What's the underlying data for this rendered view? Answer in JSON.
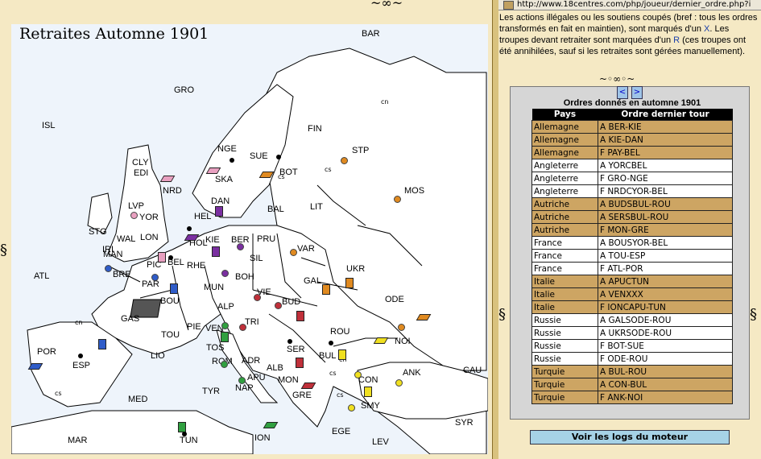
{
  "map": {
    "title": "Retraites Automne 1901",
    "provinces": [
      "BAR",
      "GRO",
      "ISL",
      "NRD",
      "EDI",
      "YOR",
      "LVP",
      "CLY",
      "STG",
      "IRI",
      "LON",
      "MAN",
      "WAL",
      "BRE",
      "PIC",
      "BEL",
      "HOL",
      "PAR",
      "BOU",
      "GAS",
      "ATL",
      "POR",
      "ESP",
      "MAR",
      "LIO",
      "TOU",
      "PIE",
      "VEN",
      "TOS",
      "ROM",
      "NAP",
      "APU",
      "TYR",
      "MED",
      "TUN",
      "ION",
      "ADR",
      "TRI",
      "VIE",
      "BUD",
      "BOH",
      "MUN",
      "ALP",
      "RHE",
      "KIE",
      "BER",
      "DAN",
      "SKA",
      "HEL",
      "NGE",
      "SUE",
      "BOT",
      "FIN",
      "STP",
      "MOS",
      "LIT",
      "BAL",
      "PRU",
      "SIL",
      "VAR",
      "GAL",
      "UKR",
      "ROU",
      "SER",
      "BUL",
      "GRE",
      "MON",
      "CON",
      "ANK",
      "SMY",
      "EGE",
      "LEV",
      "SYR",
      "NOI",
      "ODE",
      "CAU",
      "ALB"
    ],
    "coast_labels": [
      "cn",
      "cs",
      "cs",
      "cs",
      "cn",
      "cn",
      "cs",
      "cs"
    ]
  },
  "browser": {
    "url": "http://www.18centres.com/php/joueur/dernier_ordre.php?i"
  },
  "explanation": {
    "part1": "Les actions illégales ou les soutiens coupés (bref : tous les ordres transformés en fait en maintien), sont marqués d'un ",
    "x": "X",
    "part2": ". Les troupes devant retraiter sont marquées d'un ",
    "r": "R",
    "part3": " (ces troupes ont été annihilées, sauf si les retraites sont gérées manuellement)."
  },
  "nav": {
    "prev": "<",
    "next": ">"
  },
  "orders": {
    "title": "Ordres donnés en automne 1901",
    "headers": [
      "Pays",
      "Ordre dernier tour"
    ],
    "rows": [
      [
        "Allemagne",
        "A BER-KIE"
      ],
      [
        "Allemagne",
        "A KIE-DAN"
      ],
      [
        "Allemagne",
        "F PAY-BEL"
      ],
      [
        "Angleterre",
        "A YORCBEL"
      ],
      [
        "Angleterre",
        "F GRO-NGE"
      ],
      [
        "Angleterre",
        "F NRDCYOR-BEL"
      ],
      [
        "Autriche",
        "A BUDSBUL-ROU"
      ],
      [
        "Autriche",
        "A SERSBUL-ROU"
      ],
      [
        "Autriche",
        "F MON-GRE"
      ],
      [
        "France",
        "A BOUSYOR-BEL"
      ],
      [
        "France",
        "A TOU-ESP"
      ],
      [
        "France",
        "F ATL-POR"
      ],
      [
        "Italie",
        "A APUCTUN"
      ],
      [
        "Italie",
        "A VENXXX"
      ],
      [
        "Italie",
        "F IONCAPU-TUN"
      ],
      [
        "Russie",
        "A GALSODE-ROU"
      ],
      [
        "Russie",
        "A UKRSODE-ROU"
      ],
      [
        "Russie",
        "F BOT-SUE"
      ],
      [
        "Russie",
        "F ODE-ROU"
      ],
      [
        "Turquie",
        "A BUL-ROU"
      ],
      [
        "Turquie",
        "A CON-BUL"
      ],
      [
        "Turquie",
        "F ANK-NOI"
      ]
    ],
    "row_colors": [
      "c0",
      "c0",
      "c0",
      "c1",
      "c1",
      "c1",
      "c0",
      "c0",
      "c0",
      "c1",
      "c1",
      "c1",
      "c0",
      "c0",
      "c0",
      "c1",
      "c1",
      "c1",
      "c1",
      "c0",
      "c0",
      "c0"
    ]
  },
  "logs_button": "Voir les logs du moteur",
  "colors": {
    "allemagne": "#7a2fa0",
    "angleterre": "#e8a0c0",
    "autriche": "#c0303a",
    "france": "#2f5cc8",
    "italie": "#30a040",
    "russie": "#e08a20",
    "turquie": "#f0e020",
    "table_odd": "#cda563",
    "logs_button": "#a6d2e6"
  }
}
